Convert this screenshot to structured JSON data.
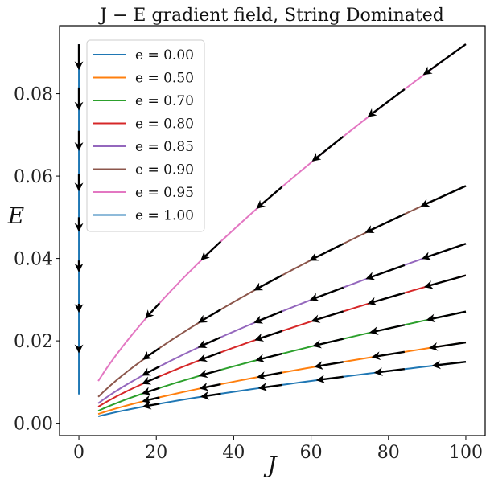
{
  "chart_data": {
    "type": "line",
    "title": "J − E gradient field, String Dominated",
    "xlabel": "J",
    "ylabel": "E",
    "xlim": [
      -5,
      105
    ],
    "ylim": [
      -0.003,
      0.0965
    ],
    "xticks": [
      "0",
      "20",
      "40",
      "60",
      "80",
      "100"
    ],
    "yticks": [
      "0.00",
      "0.02",
      "0.04",
      "0.06",
      "0.08"
    ],
    "xtick_values": [
      0,
      20,
      40,
      60,
      80,
      100
    ],
    "ytick_values": [
      0,
      0.02,
      0.04,
      0.06,
      0.08
    ],
    "grid": false,
    "legend_position": "top-left",
    "series": [
      {
        "name": "e = 0.00",
        "color": "#1f77b4",
        "x": [
          5,
          100
        ],
        "y": [
          0.00167,
          0.01491
        ]
      },
      {
        "name": "e = 0.50",
        "color": "#ff7f0e",
        "x": [
          5,
          100
        ],
        "y": [
          0.00223,
          0.01963
        ]
      },
      {
        "name": "e = 0.70",
        "color": "#2ca02c",
        "x": [
          5,
          100
        ],
        "y": [
          0.003,
          0.0271
        ]
      },
      {
        "name": "e = 0.80",
        "color": "#d62728",
        "x": [
          5,
          100
        ],
        "y": [
          0.004,
          0.0359
        ]
      },
      {
        "name": "e = 0.85",
        "color": "#9467bd",
        "x": [
          5,
          100
        ],
        "y": [
          0.00484,
          0.04357
        ]
      },
      {
        "name": "e = 0.90",
        "color": "#8c564b",
        "x": [
          5,
          100
        ],
        "y": [
          0.00641,
          0.0576
        ]
      },
      {
        "name": "e = 0.95",
        "color": "#e377c2",
        "x": [
          5,
          100
        ],
        "y": [
          0.01025,
          0.092
        ]
      },
      {
        "name": "e = 1.00",
        "color": "#1f77b4",
        "x": [
          0,
          0
        ],
        "y": [
          0.007,
          0.092
        ]
      }
    ],
    "arrow_color": "#000000"
  }
}
